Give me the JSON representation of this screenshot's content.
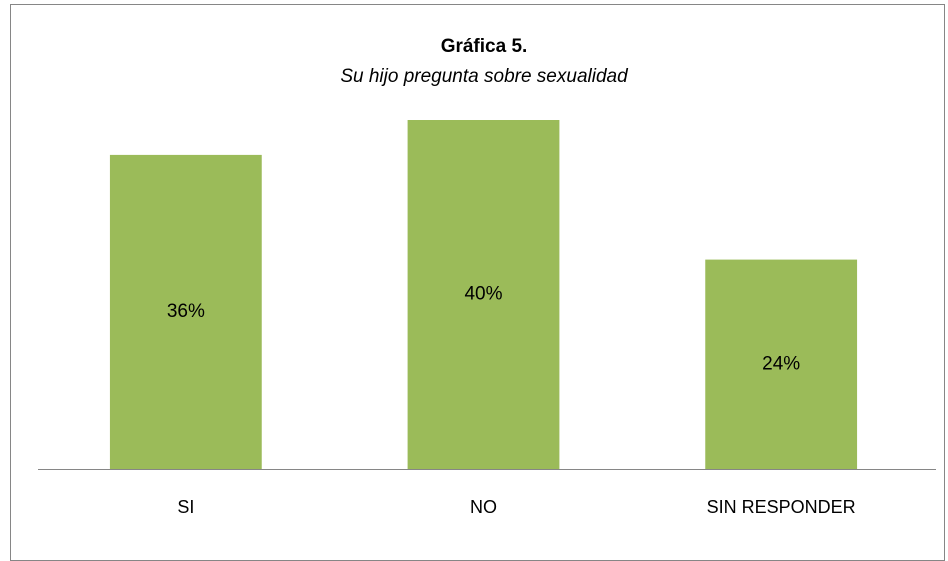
{
  "chart_data": {
    "type": "bar",
    "title": "Gráfica 5.",
    "subtitle": "Su hijo pregunta sobre sexualidad",
    "categories": [
      "SI",
      "NO",
      "SIN RESPONDER"
    ],
    "values": [
      36,
      40,
      24
    ],
    "value_labels": [
      "36%",
      "40%",
      "24%"
    ],
    "color": "#9bbb59",
    "ylim": [
      0,
      40
    ]
  }
}
